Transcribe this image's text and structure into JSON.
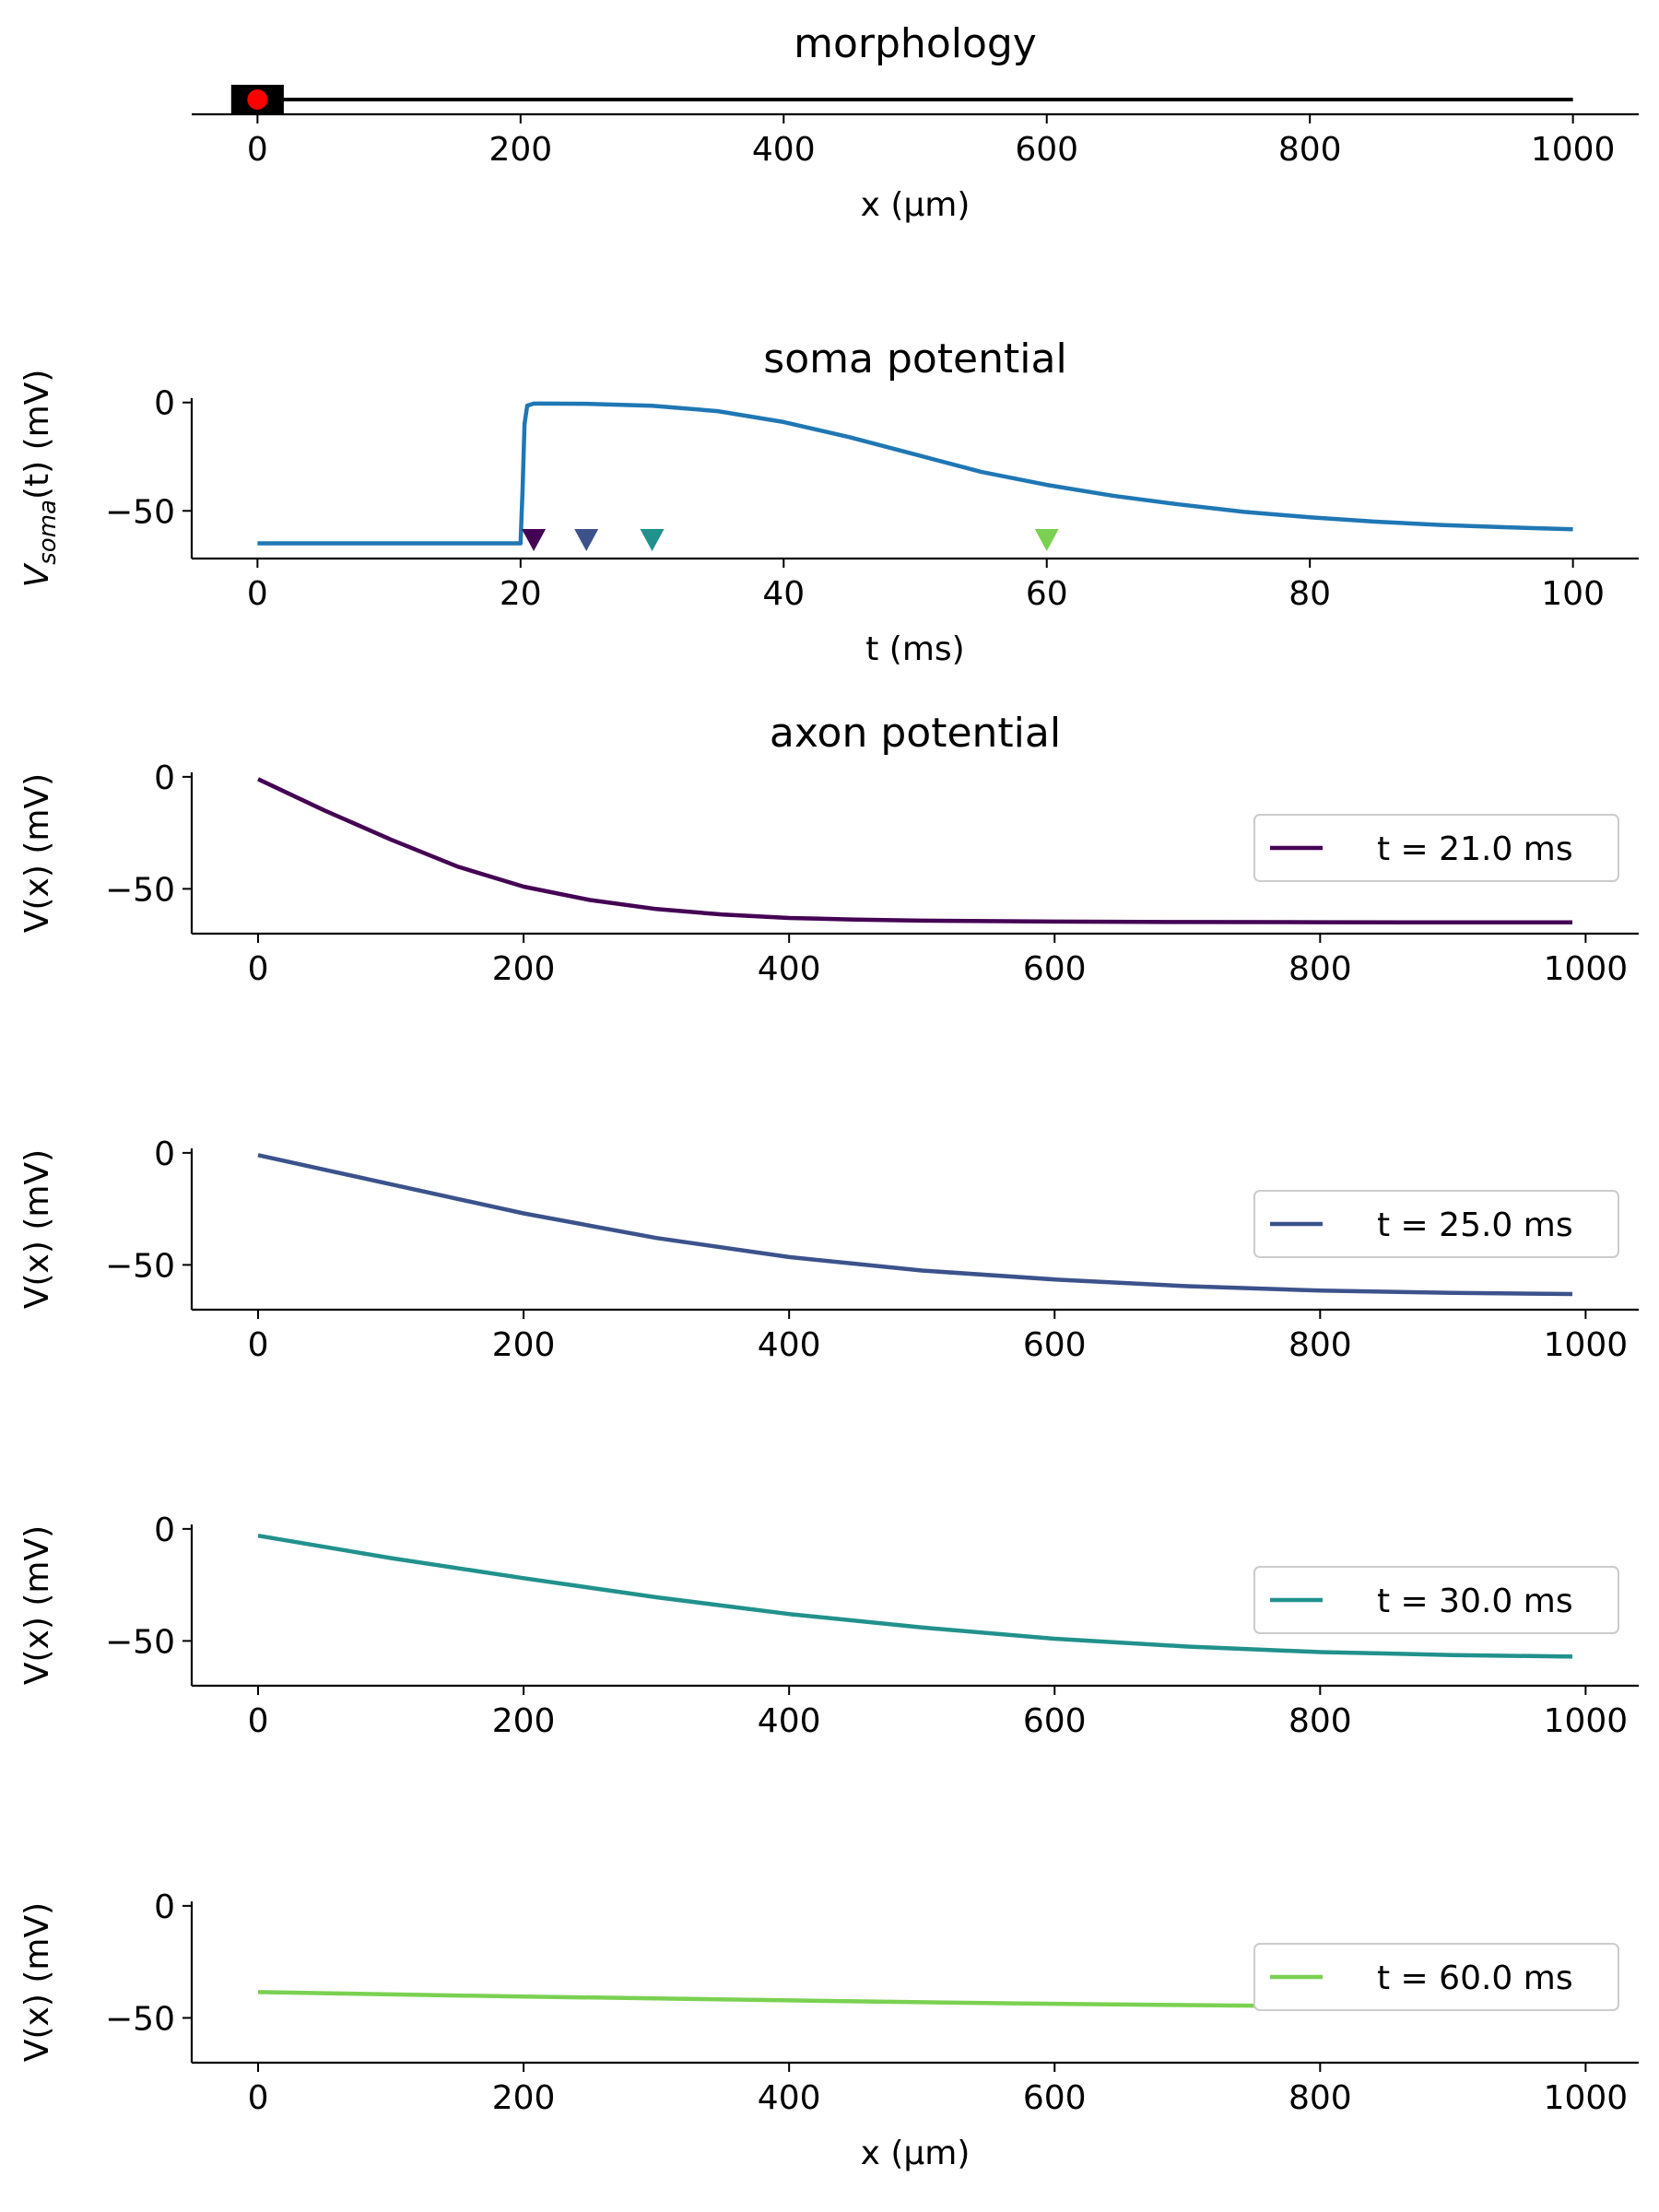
{
  "chart_data": [
    {
      "id": "morphology",
      "type": "line",
      "title": "morphology",
      "xlabel": "x (μm)",
      "ylabel": "",
      "xlim": [
        -50,
        1050
      ],
      "xticks": [
        0,
        200,
        400,
        600,
        800,
        1000
      ],
      "xtick_labels": [
        "0",
        "200",
        "400",
        "600",
        "800",
        "1000"
      ],
      "soma": {
        "x": [
          -20,
          20
        ]
      },
      "axon": {
        "x": [
          0,
          1000
        ]
      },
      "stimulus_electrode": {
        "x": 0
      },
      "colors": {
        "soma": "#000000",
        "axon": "#000000",
        "electrode": "#ff0000"
      }
    },
    {
      "id": "soma",
      "type": "line",
      "title": "soma potential",
      "xlabel": "t (ms)",
      "ylabel_main": "V",
      "ylabel_sub": "soma",
      "ylabel_rest": "(t) (mV)",
      "xlim": [
        -5,
        105
      ],
      "ylim": [
        -72,
        2
      ],
      "xticks": [
        0,
        20,
        40,
        60,
        80,
        100
      ],
      "xtick_labels": [
        "0",
        "20",
        "40",
        "60",
        "80",
        "100"
      ],
      "yticks": [
        0,
        -50
      ],
      "ytick_labels": [
        "0",
        "−50"
      ],
      "series": [
        {
          "color": "#1f77b4",
          "x": [
            0,
            20,
            20.15,
            20.3,
            20.5,
            21,
            22,
            25,
            30,
            35,
            40,
            45,
            50,
            55,
            60,
            65,
            70,
            75,
            80,
            85,
            90,
            95,
            100
          ],
          "y": [
            -65,
            -65,
            -40,
            -10,
            -1.5,
            -0.5,
            -0.5,
            -0.6,
            -1.5,
            -4,
            -9,
            -16,
            -24,
            -32,
            -38,
            -43,
            -47,
            -50.5,
            -53,
            -55,
            -56.5,
            -57.6,
            -58.5
          ]
        }
      ],
      "markers": {
        "t": [
          21,
          25,
          30,
          60
        ],
        "colors": [
          "#440154",
          "#3b528b",
          "#21918c",
          "#7ad151"
        ],
        "y": -63.5
      }
    },
    {
      "id": "axon_21",
      "type": "line",
      "title": "axon potential",
      "xlabel": "",
      "ylabel": "V(x) (mV)",
      "xlim": [
        -50,
        1040
      ],
      "ylim": [
        -70,
        2
      ],
      "xticks": [
        0,
        200,
        400,
        600,
        800,
        1000
      ],
      "xtick_labels": [
        "0",
        "200",
        "400",
        "600",
        "800",
        "1000"
      ],
      "yticks": [
        0,
        -50
      ],
      "ytick_labels": [
        "0",
        "−50"
      ],
      "series": [
        {
          "name": "t = 21.0 ms",
          "color": "#440154",
          "x": [
            0,
            50,
            100,
            150,
            200,
            250,
            300,
            350,
            400,
            450,
            500,
            600,
            700,
            800,
            900,
            990
          ],
          "y": [
            -1,
            -15,
            -28,
            -40,
            -49,
            -55,
            -59,
            -61.5,
            -63,
            -63.7,
            -64.2,
            -64.6,
            -64.8,
            -64.9,
            -65,
            -65
          ]
        }
      ]
    },
    {
      "id": "axon_25",
      "type": "line",
      "title": "",
      "xlabel": "",
      "ylabel": "V(x) (mV)",
      "xlim": [
        -50,
        1040
      ],
      "ylim": [
        -70,
        2
      ],
      "xticks": [
        0,
        200,
        400,
        600,
        800,
        1000
      ],
      "xtick_labels": [
        "0",
        "200",
        "400",
        "600",
        "800",
        "1000"
      ],
      "yticks": [
        0,
        -50
      ],
      "ytick_labels": [
        "0",
        "−50"
      ],
      "series": [
        {
          "name": "t = 25.0 ms",
          "color": "#3b528b",
          "x": [
            0,
            100,
            200,
            300,
            400,
            500,
            600,
            700,
            800,
            900,
            990
          ],
          "y": [
            -1,
            -14,
            -27,
            -38,
            -46.5,
            -52.5,
            -56.5,
            -59.5,
            -61.5,
            -62.5,
            -63
          ]
        }
      ]
    },
    {
      "id": "axon_30",
      "type": "line",
      "title": "",
      "xlabel": "",
      "ylabel": "V(x) (mV)",
      "xlim": [
        -50,
        1040
      ],
      "ylim": [
        -70,
        2
      ],
      "xticks": [
        0,
        200,
        400,
        600,
        800,
        1000
      ],
      "xtick_labels": [
        "0",
        "200",
        "400",
        "600",
        "800",
        "1000"
      ],
      "yticks": [
        0,
        -50
      ],
      "ytick_labels": [
        "0",
        "−50"
      ],
      "series": [
        {
          "name": "t = 30.0 ms",
          "color": "#21918c",
          "x": [
            0,
            100,
            200,
            300,
            400,
            500,
            600,
            700,
            800,
            900,
            990
          ],
          "y": [
            -3,
            -13,
            -22,
            -30.5,
            -38,
            -44,
            -49,
            -52.5,
            -55,
            -56.3,
            -57
          ]
        }
      ]
    },
    {
      "id": "axon_60",
      "type": "line",
      "title": "",
      "xlabel": "x (μm)",
      "ylabel": "V(x) (mV)",
      "xlim": [
        -50,
        1040
      ],
      "ylim": [
        -70,
        2
      ],
      "xticks": [
        0,
        200,
        400,
        600,
        800,
        1000
      ],
      "xtick_labels": [
        "0",
        "200",
        "400",
        "600",
        "800",
        "1000"
      ],
      "yticks": [
        0,
        -50
      ],
      "ytick_labels": [
        "0",
        "−50"
      ],
      "series": [
        {
          "name": "t = 60.0 ms",
          "color": "#7ad151",
          "x": [
            0,
            100,
            200,
            300,
            400,
            500,
            600,
            700,
            800,
            900,
            990
          ],
          "y": [
            -38.5,
            -39.5,
            -40.5,
            -41.3,
            -42.2,
            -43,
            -43.7,
            -44.3,
            -44.8,
            -45.1,
            -45.3
          ]
        }
      ]
    }
  ]
}
